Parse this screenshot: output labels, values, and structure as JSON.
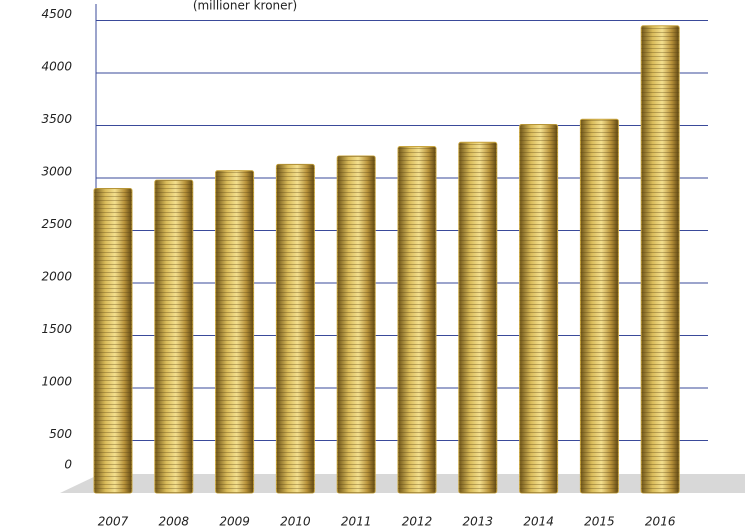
{
  "chart_data": {
    "type": "bar",
    "subtitle": "(millioner kroner)",
    "categories": [
      "2007",
      "2008",
      "2009",
      "2010",
      "2011",
      "2012",
      "2013",
      "2014",
      "2015",
      "2016"
    ],
    "values": [
      2900,
      2980,
      3070,
      3130,
      3210,
      3300,
      3340,
      3510,
      3560,
      4450
    ],
    "color": "#c9a640",
    "ylim": [
      0,
      4600
    ],
    "yticks": [
      0,
      500,
      1000,
      1500,
      2000,
      2500,
      3000,
      3500,
      4000,
      4500
    ],
    "grid": true
  }
}
